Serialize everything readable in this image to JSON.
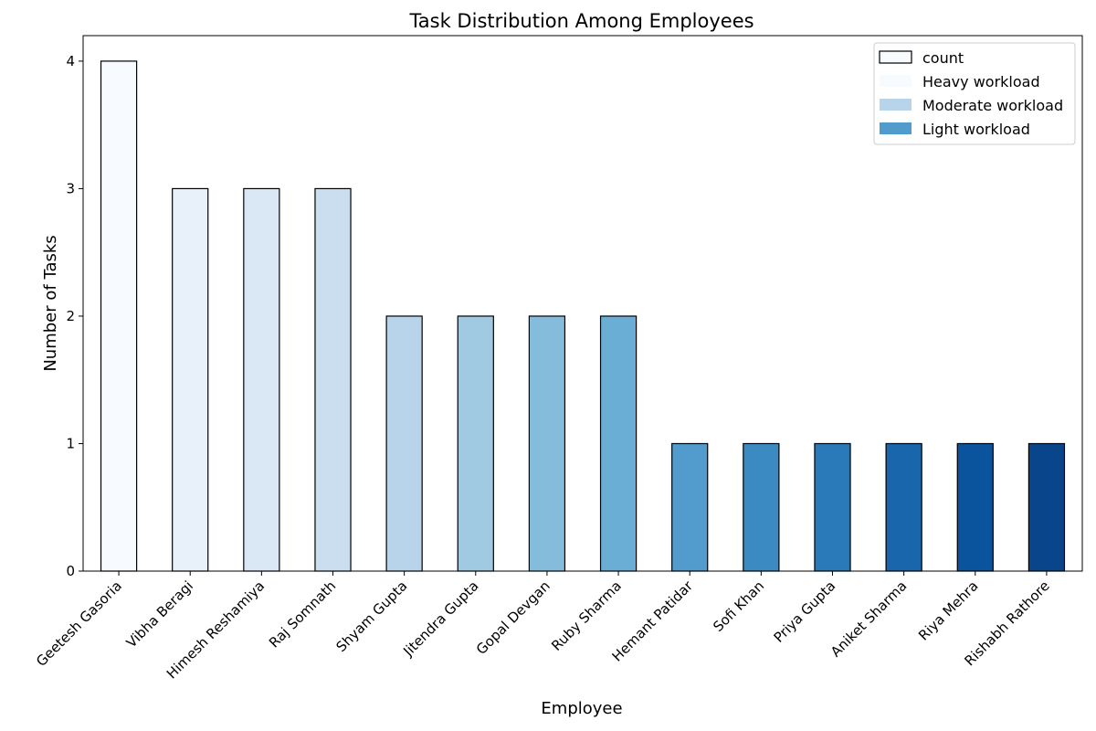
{
  "chart_data": {
    "type": "bar",
    "title": "Task Distribution Among Employees",
    "xlabel": "Employee",
    "ylabel": "Number of Tasks",
    "ylim": [
      0,
      4.2
    ],
    "yticks": [
      0,
      1,
      2,
      3,
      4
    ],
    "grid": false,
    "legend_position": "top-right",
    "categories": [
      "Geetesh Gasoria",
      "Vibha Beragi",
      "Himesh Reshamiya",
      "Raj Somnath",
      "Shyam Gupta",
      "Jitendra Gupta",
      "Gopal Devgan",
      "Ruby Sharma",
      "Hemant Patidar",
      "Sofi Khan",
      "Priya Gupta",
      "Aniket Sharma",
      "Riya Mehra",
      "Rishabh Rathore"
    ],
    "series": [
      {
        "name": "count",
        "values": [
          4,
          3,
          3,
          3,
          2,
          2,
          2,
          2,
          1,
          1,
          1,
          1,
          1,
          1
        ]
      }
    ],
    "bar_colors": [
      "#f7fbff",
      "#e8f1fa",
      "#dae8f5",
      "#cadef0",
      "#b7d4ea",
      "#9fcae1",
      "#85bcdc",
      "#6aaed6",
      "#519ccc",
      "#3b8bc2",
      "#2a7ab9",
      "#1966ad",
      "#0a549e",
      "#08458a"
    ],
    "legend": [
      {
        "label": "count",
        "color": "#f7fbff",
        "outlined": true
      },
      {
        "label": "Heavy workload",
        "color": "#f7fbff",
        "outlined": false
      },
      {
        "label": "Moderate workload",
        "color": "#b7d4ea",
        "outlined": false
      },
      {
        "label": "Light workload",
        "color": "#519ccc",
        "outlined": false
      }
    ]
  }
}
